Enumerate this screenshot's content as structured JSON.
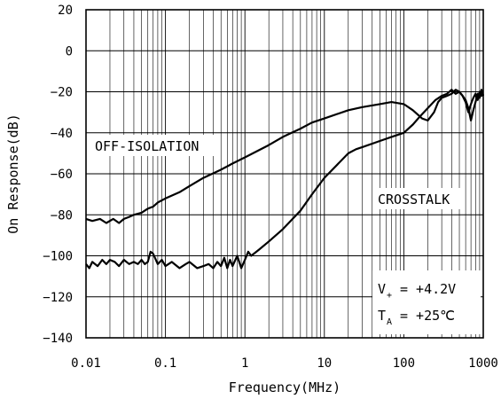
{
  "chart_data": {
    "type": "line",
    "x_scale": "log",
    "xlim": [
      0.01,
      1000
    ],
    "ylim": [
      -140,
      20
    ],
    "grid": true,
    "xlabel": "Frequency(MHz)",
    "ylabel": "On Response(dB)",
    "x_ticks": [
      "0.01",
      "0.1",
      "1",
      "10",
      "100",
      "1000"
    ],
    "y_ticks": [
      "20",
      "0",
      "-20",
      "-40",
      "-60",
      "-80",
      "-100",
      "-120",
      "-140"
    ],
    "annotations": {
      "off_isolation": "OFF-ISOLATION",
      "crosstalk": "CROSSTALK",
      "vplus_symbol": "V",
      "vplus_sub": "+",
      "vplus_value": "= +4.2V",
      "ta_symbol": "T",
      "ta_sub": "A",
      "ta_value": "= +25℃"
    },
    "series": [
      {
        "key": "off_isolation",
        "x": [
          0.01,
          0.012,
          0.015,
          0.018,
          0.022,
          0.026,
          0.03,
          0.035,
          0.04,
          0.05,
          0.06,
          0.07,
          0.08,
          0.1,
          0.15,
          0.2,
          0.3,
          0.5,
          0.7,
          1,
          2,
          3,
          5,
          7,
          10,
          20,
          30,
          50,
          70,
          100,
          130,
          170,
          200,
          240,
          270,
          300,
          350,
          400,
          450,
          500,
          550,
          600,
          650,
          700,
          750,
          800,
          850,
          900,
          950,
          1000
        ],
        "y": [
          -82,
          -83,
          -82,
          -84,
          -82,
          -84,
          -82,
          -81,
          -80,
          -79,
          -77,
          -76,
          -74,
          -72,
          -69,
          -66,
          -62,
          -58,
          -55,
          -52,
          -46,
          -42,
          -38,
          -35,
          -33,
          -29,
          -27.5,
          -26,
          -25,
          -26,
          -29,
          -33,
          -34,
          -30,
          -25,
          -23,
          -22,
          -21,
          -19,
          -20,
          -22,
          -25,
          -30,
          -26,
          -23,
          -21,
          -24,
          -20,
          -22,
          -21
        ]
      },
      {
        "key": "crosstalk",
        "x": [
          0.01,
          0.011,
          0.012,
          0.014,
          0.016,
          0.018,
          0.02,
          0.023,
          0.026,
          0.03,
          0.035,
          0.04,
          0.045,
          0.05,
          0.055,
          0.06,
          0.065,
          0.07,
          0.08,
          0.09,
          0.1,
          0.12,
          0.15,
          0.18,
          0.2,
          0.25,
          0.3,
          0.35,
          0.4,
          0.45,
          0.5,
          0.55,
          0.6,
          0.65,
          0.7,
          0.8,
          0.9,
          1,
          1.1,
          1.2,
          1.5,
          2,
          3,
          5,
          7,
          10,
          15,
          20,
          25,
          30,
          50,
          70,
          100,
          130,
          160,
          200,
          250,
          300,
          350,
          400,
          450,
          500,
          550,
          600,
          650,
          700,
          750,
          800,
          850,
          900,
          950,
          1000
        ],
        "y": [
          -104,
          -106,
          -103,
          -105,
          -102,
          -104,
          -102,
          -103,
          -105,
          -102,
          -104,
          -103,
          -104,
          -102,
          -104,
          -103,
          -98,
          -99,
          -104,
          -102,
          -105,
          -103,
          -106,
          -104,
          -103,
          -106,
          -105,
          -104,
          -106,
          -103,
          -105,
          -101,
          -106,
          -102,
          -105,
          -100,
          -106,
          -102,
          -98,
          -100,
          -97,
          -93,
          -87,
          -78,
          -70,
          -62,
          -55,
          -50,
          -48,
          -47,
          -44,
          -42,
          -40,
          -36,
          -32,
          -28,
          -24,
          -22,
          -21,
          -19,
          -21,
          -20,
          -22,
          -24,
          -28,
          -34,
          -29,
          -25,
          -21,
          -23,
          -19,
          -22
        ]
      }
    ]
  }
}
